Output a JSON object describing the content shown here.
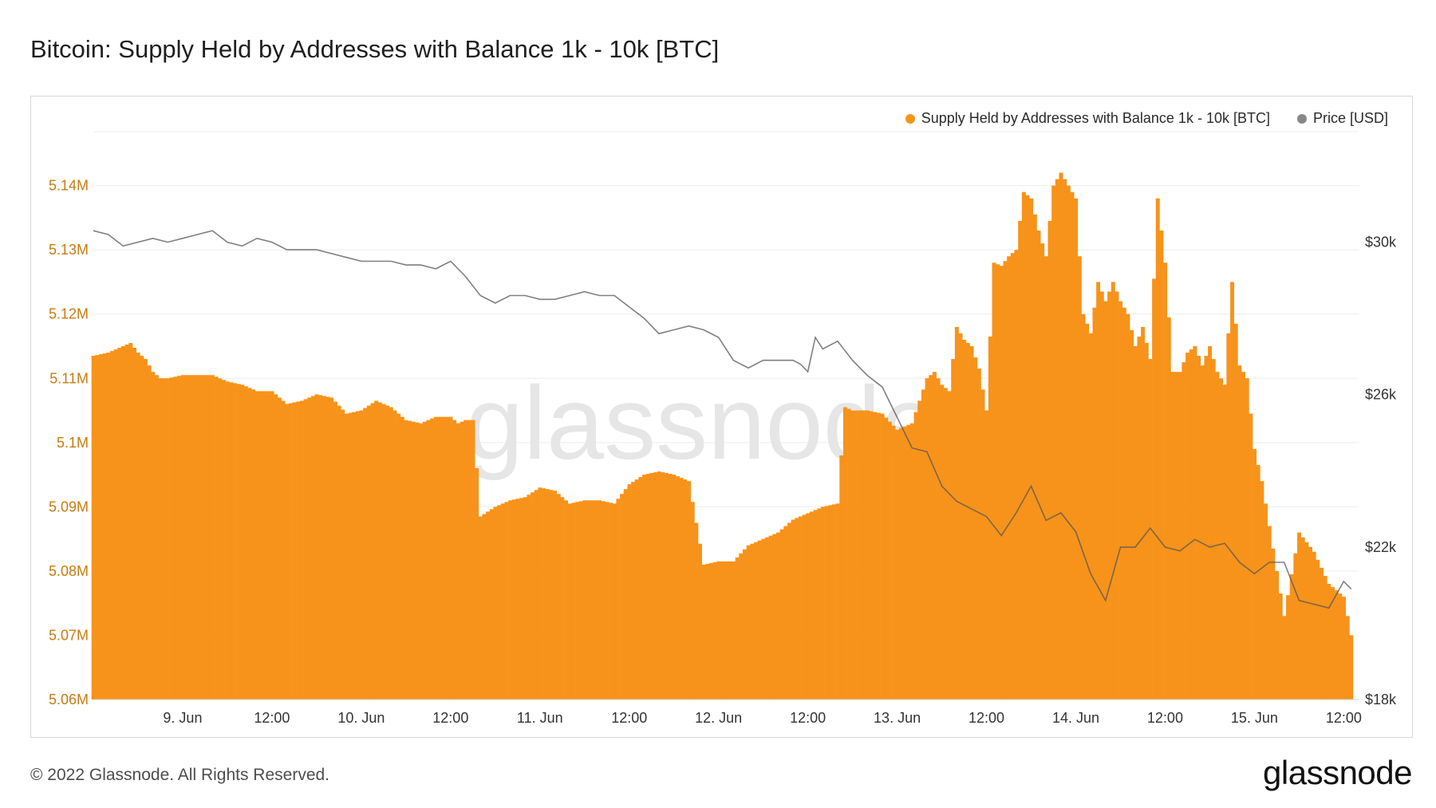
{
  "title": "Bitcoin: Supply Held by Addresses with Balance 1k - 10k [BTC]",
  "footer": "© 2022 Glassnode. All Rights Reserved.",
  "brand": "glassnode",
  "watermark": "glassnode",
  "colors": {
    "supply": "#f7931a",
    "price": "#888888",
    "grid": "#eeeeee",
    "leftAxisText": "#c77b13"
  },
  "chart_data": {
    "type": "bar",
    "title": "Bitcoin: Supply Held by Addresses with Balance 1k - 10k [BTC]",
    "xlabel": "",
    "ylabel": "",
    "y_left_ticks": [
      "5.06M",
      "5.07M",
      "5.08M",
      "5.09M",
      "5.1M",
      "5.11M",
      "5.12M",
      "5.13M",
      "5.14M"
    ],
    "y_left_ylim": [
      5.06,
      5.1484
    ],
    "y_right_ticks": [
      "$18k",
      "$22k",
      "$26k",
      "$30k"
    ],
    "y_right_ylim": [
      18000,
      32900
    ],
    "x_ticks": [
      "9. Jun",
      "12:00",
      "10. Jun",
      "12:00",
      "11. Jun",
      "12:00",
      "12. Jun",
      "12:00",
      "13. Jun",
      "12:00",
      "14. Jun",
      "12:00",
      "15. Jun",
      "12:00"
    ],
    "x_tick_hours": [
      12,
      24,
      36,
      48,
      60,
      72,
      84,
      96,
      108,
      120,
      132,
      144,
      156,
      168
    ],
    "x_range_hours": [
      0,
      170
    ],
    "legend_position": "top-right",
    "grid": true,
    "series": [
      {
        "name": "Supply Held by Addresses with Balance 1k - 10k [BTC]",
        "axis": "left",
        "unit": "M BTC",
        "x_hours": [
          0,
          2,
          3,
          4,
          5,
          6,
          7,
          8,
          9,
          10,
          12,
          14,
          16,
          18,
          20,
          22,
          24,
          26,
          28,
          30,
          32,
          34,
          36,
          38,
          40,
          42,
          44,
          46,
          48,
          49,
          50,
          51,
          52,
          54,
          56,
          58,
          60,
          62,
          64,
          66,
          68,
          70,
          72,
          74,
          76,
          78,
          80,
          82,
          84,
          86,
          88,
          90,
          92,
          94,
          96,
          98,
          100,
          101,
          102,
          104,
          106,
          108,
          110,
          112,
          113,
          114,
          115,
          116,
          117,
          118,
          119,
          120,
          121,
          122,
          123,
          124,
          125,
          126,
          127,
          128,
          129,
          130,
          131,
          132,
          133,
          134,
          135,
          136,
          137,
          138,
          139,
          140,
          141,
          142,
          143,
          144,
          145,
          146,
          147,
          148,
          149,
          150,
          151,
          152,
          153,
          154,
          155,
          156,
          157,
          158,
          160,
          162,
          164,
          166,
          168,
          169
        ],
        "values": [
          5.1135,
          5.114,
          5.1145,
          5.115,
          5.1155,
          5.114,
          5.113,
          5.111,
          5.11,
          5.11,
          5.1105,
          5.1105,
          5.1105,
          5.1095,
          5.109,
          5.108,
          5.108,
          5.106,
          5.1065,
          5.1075,
          5.107,
          5.1045,
          5.105,
          5.1065,
          5.1055,
          5.1035,
          5.103,
          5.104,
          5.104,
          5.103,
          5.1035,
          5.1035,
          5.0885,
          5.09,
          5.091,
          5.0915,
          5.093,
          5.0925,
          5.0905,
          5.091,
          5.091,
          5.0905,
          5.0935,
          5.095,
          5.0955,
          5.095,
          5.094,
          5.081,
          5.0815,
          5.0815,
          5.084,
          5.085,
          5.086,
          5.088,
          5.089,
          5.09,
          5.0905,
          5.1055,
          5.105,
          5.105,
          5.1045,
          5.102,
          5.103,
          5.11,
          5.111,
          5.109,
          5.108,
          5.118,
          5.116,
          5.115,
          5.1115,
          5.105,
          5.128,
          5.1275,
          5.129,
          5.13,
          5.139,
          5.138,
          5.133,
          5.129,
          5.14,
          5.142,
          5.14,
          5.138,
          5.12,
          5.117,
          5.125,
          5.122,
          5.125,
          5.122,
          5.12,
          5.115,
          5.118,
          5.113,
          5.138,
          5.128,
          5.111,
          5.111,
          5.114,
          5.115,
          5.112,
          5.115,
          5.111,
          5.109,
          5.125,
          5.112,
          5.11,
          5.099,
          5.094,
          5.087,
          5.073,
          5.086,
          5.083,
          5.078,
          5.076,
          5.07
        ]
      },
      {
        "name": "Price [USD]",
        "axis": "right",
        "unit": "USD",
        "x_hours": [
          0,
          2,
          4,
          6,
          8,
          10,
          12,
          14,
          16,
          18,
          20,
          22,
          24,
          26,
          28,
          30,
          32,
          34,
          36,
          38,
          40,
          42,
          44,
          46,
          48,
          50,
          52,
          54,
          56,
          58,
          60,
          62,
          64,
          66,
          68,
          70,
          72,
          74,
          76,
          78,
          80,
          82,
          84,
          86,
          88,
          90,
          92,
          94,
          95,
          96,
          97,
          98,
          100,
          102,
          104,
          106,
          108,
          110,
          112,
          114,
          116,
          118,
          120,
          122,
          124,
          126,
          128,
          130,
          132,
          134,
          136,
          138,
          140,
          142,
          144,
          146,
          148,
          150,
          152,
          154,
          156,
          158,
          160,
          162,
          164,
          166,
          168,
          169
        ],
        "values": [
          30300,
          30200,
          29900,
          30000,
          30100,
          30000,
          30100,
          30200,
          30300,
          30000,
          29900,
          30100,
          30000,
          29800,
          29800,
          29800,
          29700,
          29600,
          29500,
          29500,
          29500,
          29400,
          29400,
          29300,
          29500,
          29100,
          28600,
          28400,
          28600,
          28600,
          28500,
          28500,
          28600,
          28700,
          28600,
          28600,
          28300,
          28000,
          27600,
          27700,
          27800,
          27700,
          27500,
          26900,
          26700,
          26900,
          26900,
          26900,
          26800,
          26600,
          27500,
          27200,
          27400,
          26900,
          26500,
          26200,
          25400,
          24600,
          24500,
          23600,
          23200,
          23000,
          22800,
          22300,
          22900,
          23600,
          22700,
          22900,
          22400,
          21300,
          20600,
          22000,
          22000,
          22500,
          22000,
          21900,
          22200,
          22000,
          22100,
          21600,
          21300,
          21600,
          21600,
          20600,
          20500,
          20400,
          21100,
          20900
        ]
      }
    ]
  }
}
